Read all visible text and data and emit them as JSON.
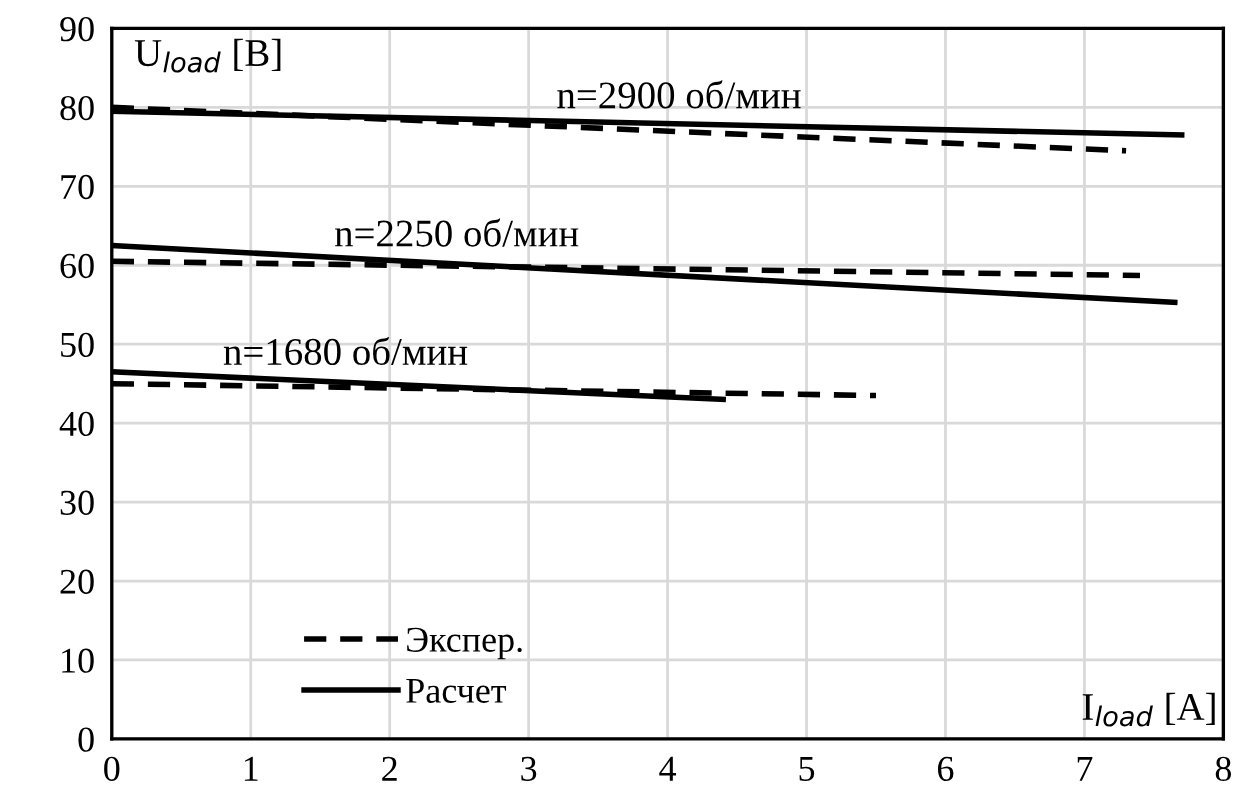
{
  "chart_data": {
    "type": "line",
    "xlabel": "I$_{load}$ [А]",
    "ylabel": "U$_{load}$ [В]",
    "xlim": [
      0,
      8
    ],
    "ylim": [
      0,
      90
    ],
    "xticks": [
      0,
      1,
      2,
      3,
      4,
      5,
      6,
      7,
      8
    ],
    "yticks": [
      0,
      10,
      20,
      30,
      40,
      50,
      60,
      70,
      80,
      90
    ],
    "grid": true,
    "legend": "bottom left",
    "marker": "none",
    "series": [
      {
        "name": "Экспер.",
        "color": "#000000",
        "line_style": "dashed",
        "x": [
          0,
          7.3
        ],
        "values": [
          80,
          74.5
        ]
      },
      {
        "name": "Расчет",
        "color": "#000000",
        "line_style": "solid",
        "x": [
          0,
          7.7
        ],
        "values": [
          79.5,
          76.5
        ]
      },
      {
        "color": "#000000",
        "line_style": "dashed",
        "x": [
          0,
          7.4
        ],
        "values": [
          60.5,
          58.7
        ]
      },
      {
        "color": "#000000",
        "line_style": "solid",
        "x": [
          0,
          7.65
        ],
        "values": [
          62.5,
          55.3
        ]
      },
      {
        "color": "#000000",
        "line_style": "dashed",
        "x": [
          0,
          5.5
        ],
        "values": [
          45,
          43.5
        ]
      },
      {
        "color": "#000000",
        "line_style": "solid",
        "x": [
          0,
          4.4
        ],
        "values": [
          46.5,
          43
        ]
      }
    ],
    "annotations": [
      {
        "text": "n=2900 об/мин",
        "x": 3.2,
        "y": 78.5
      },
      {
        "text": "n=2250 об/мин",
        "x": 1.6,
        "y": 61
      },
      {
        "text": "n=1680 об/мин",
        "x": 0.8,
        "y": 46
      }
    ]
  }
}
